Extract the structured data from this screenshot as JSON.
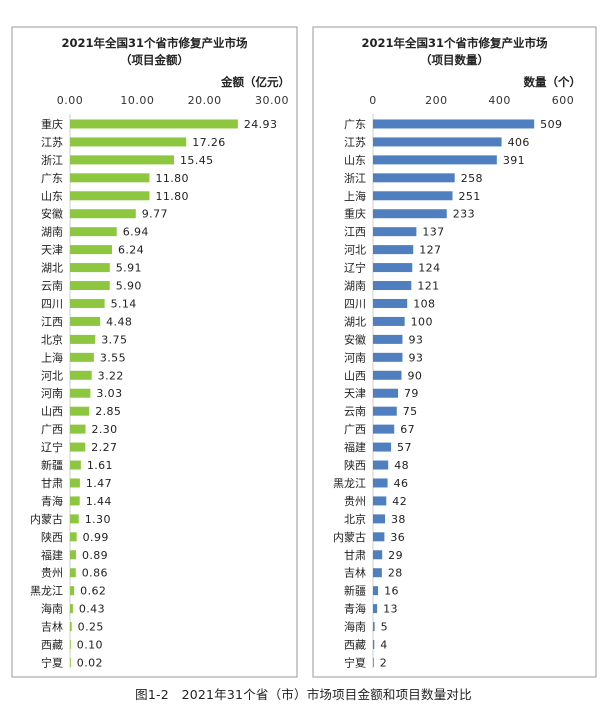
{
  "figure_caption": "图1-2　2021年31个省（市）市场项目金额和项目数量对比",
  "chart_data": [
    {
      "type": "bar",
      "orientation": "horizontal",
      "title": "2021年全国31个省市修复产业市场",
      "subtitle": "（项目金额）",
      "xlabel": "金额（亿元）",
      "ylabel": "",
      "xlim": [
        0,
        30
      ],
      "ticks": [
        "0.00",
        "10.00",
        "20.00",
        "30.00"
      ],
      "grid": false,
      "bar_color": "#8dc63f",
      "categories": [
        "重庆",
        "江苏",
        "浙江",
        "广东",
        "山东",
        "安徽",
        "湖南",
        "天津",
        "湖北",
        "云南",
        "四川",
        "江西",
        "北京",
        "上海",
        "河北",
        "河南",
        "山西",
        "广西",
        "辽宁",
        "新疆",
        "甘肃",
        "青海",
        "内蒙古",
        "陕西",
        "福建",
        "贵州",
        "黑龙江",
        "海南",
        "吉林",
        "西藏",
        "宁夏"
      ],
      "values": [
        24.93,
        17.26,
        15.45,
        11.8,
        11.8,
        9.77,
        6.94,
        6.24,
        5.91,
        5.9,
        5.14,
        4.48,
        3.75,
        3.55,
        3.22,
        3.03,
        2.85,
        2.3,
        2.27,
        1.61,
        1.47,
        1.44,
        1.3,
        0.99,
        0.89,
        0.86,
        0.62,
        0.43,
        0.25,
        0.1,
        0.02
      ],
      "labels": [
        "24.93",
        "17.26",
        "15.45",
        "11.80",
        "11.80",
        "9.77",
        "6.94",
        "6.24",
        "5.91",
        "5.90",
        "5.14",
        "4.48",
        "3.75",
        "3.55",
        "3.22",
        "3.03",
        "2.85",
        "2.30",
        "2.27",
        "1.61",
        "1.47",
        "1.44",
        "1.30",
        "0.99",
        "0.89",
        "0.86",
        "0.62",
        "0.43",
        "0.25",
        "0.10",
        "0.02"
      ]
    },
    {
      "type": "bar",
      "orientation": "horizontal",
      "title": "2021年全国31个省市修复产业市场",
      "subtitle": "（项目数量）",
      "xlabel": "数量（个）",
      "ylabel": "",
      "xlim": [
        0,
        600
      ],
      "ticks": [
        "0",
        "200",
        "400",
        "600"
      ],
      "grid": false,
      "bar_color": "#4f7fbf",
      "categories": [
        "广东",
        "江苏",
        "山东",
        "浙江",
        "上海",
        "重庆",
        "江西",
        "河北",
        "辽宁",
        "湖南",
        "四川",
        "湖北",
        "安徽",
        "河南",
        "山西",
        "天津",
        "云南",
        "广西",
        "福建",
        "陕西",
        "黑龙江",
        "贵州",
        "北京",
        "内蒙古",
        "甘肃",
        "吉林",
        "新疆",
        "青海",
        "海南",
        "西藏",
        "宁夏"
      ],
      "values": [
        509,
        406,
        391,
        258,
        251,
        233,
        137,
        127,
        124,
        121,
        108,
        100,
        93,
        93,
        90,
        79,
        75,
        67,
        57,
        48,
        46,
        42,
        38,
        36,
        29,
        28,
        16,
        13,
        5,
        4,
        2
      ],
      "labels": [
        "509",
        "406",
        "391",
        "258",
        "251",
        "233",
        "137",
        "127",
        "124",
        "121",
        "108",
        "100",
        "93",
        "93",
        "90",
        "79",
        "75",
        "67",
        "57",
        "48",
        "46",
        "42",
        "38",
        "36",
        "29",
        "28",
        "16",
        "13",
        "5",
        "4",
        "2"
      ]
    }
  ]
}
